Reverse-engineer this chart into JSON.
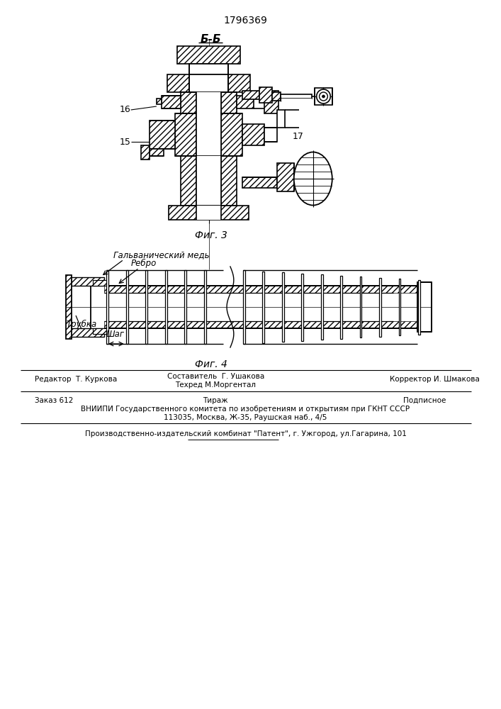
{
  "patent_number": "1796369",
  "fig3_label": "Фиг. 3",
  "fig4_label": "Фиг. 4",
  "section_label": "Б-Б",
  "lbl_15": "15",
  "lbl_16": "16",
  "lbl_17": "17",
  "ann_galvanic": "Гальванический медь",
  "ann_rib": "Ребро",
  "ann_tube": "Трубка",
  "ann_step": "Шаг",
  "footer_editor": "Редактор  Т. Куркова",
  "footer_composer": "Составитель  Г. Ушакова",
  "footer_techred": "Техред М.Моргентал",
  "footer_corrector": "Корректор И. Шмакова",
  "footer_order": "Заказ 612",
  "footer_tirazh": "Тираж",
  "footer_podpisnoe": "Подписное",
  "footer_vniiipi": "ВНИИПИ Государственного комитета по изобретениям и открытиям при ГКНТ СССР",
  "footer_address": "113035, Москва, Ж-35, Раушская наб., 4/5",
  "footer_publisher": "Производственно-издательский комбинат \"Патент\", г. Ужгород, ул.Гагарина, 101",
  "bg_color": "#ffffff"
}
